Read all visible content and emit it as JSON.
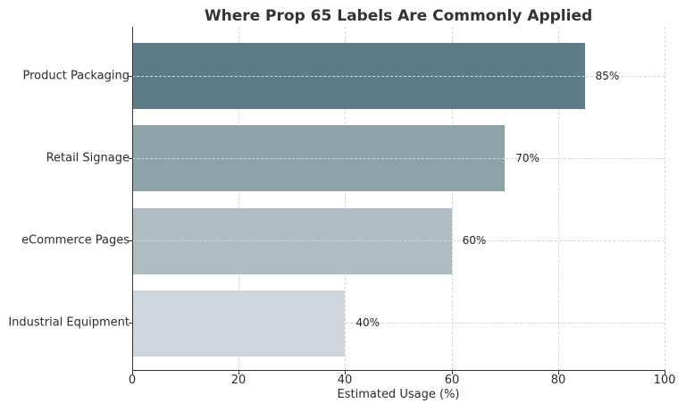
{
  "chart_data": {
    "type": "bar",
    "orientation": "horizontal",
    "title": "Where Prop 65 Labels Are Commonly Applied",
    "xlabel": "Estimated Usage (%)",
    "ylabel": "",
    "xlim": [
      0,
      100
    ],
    "xticks": [
      "0",
      "20",
      "40",
      "60",
      "80",
      "100"
    ],
    "grid": true,
    "categories": [
      "Product Packaging",
      "Retail Signage",
      "eCommerce Pages",
      "Industrial Equipment"
    ],
    "values": [
      85,
      70,
      60,
      40
    ],
    "value_labels": [
      "85%",
      "70%",
      "60%",
      "40%"
    ],
    "colors": [
      "#607b88",
      "#8ea2aa",
      "#afbdc3",
      "#ced7dd"
    ]
  }
}
